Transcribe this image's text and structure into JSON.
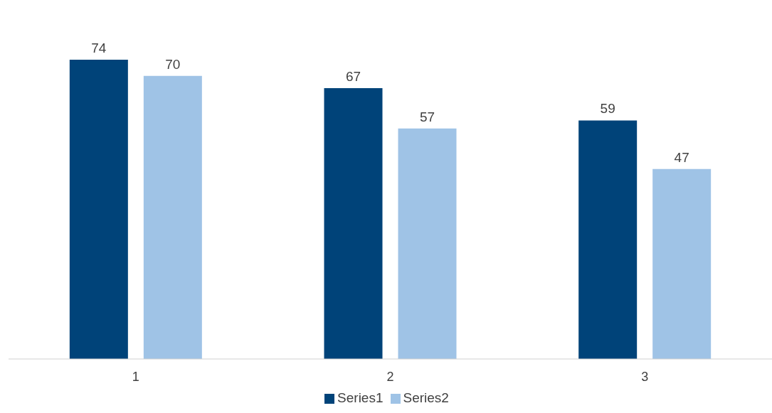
{
  "chart_data": {
    "type": "bar",
    "categories": [
      "1",
      "2",
      "3"
    ],
    "series": [
      {
        "name": "Series1",
        "color": "#004379",
        "values": [
          74,
          67,
          59
        ]
      },
      {
        "name": "Series2",
        "color": "#9fc3e6",
        "values": [
          70,
          57,
          47
        ]
      }
    ],
    "data_labels": true,
    "legend": "bottom",
    "grid": false
  }
}
